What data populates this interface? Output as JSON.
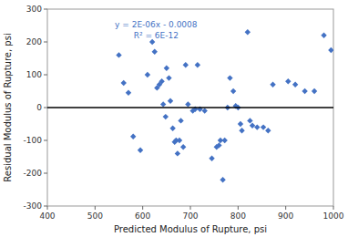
{
  "chart_data": {
    "type": "scatter",
    "xlabel": "Predicted Modulus of Rupture, psi",
    "ylabel": "Residual Modulus of Rupture, psi",
    "xlim": [
      400,
      1000
    ],
    "ylim": [
      -300,
      300
    ],
    "xticks": [
      400,
      500,
      600,
      700,
      800,
      900,
      1000
    ],
    "yticks": [
      -300,
      -200,
      -100,
      0,
      100,
      200,
      300
    ],
    "grid": false,
    "annotations": [
      "y = 2E-06x - 0.0008",
      "R² = 6E-12"
    ],
    "series": [
      {
        "type": "scatter",
        "color": "#4472C4",
        "marker": "diamond",
        "x": [
          550,
          560,
          570,
          580,
          595,
          610,
          620,
          625,
          630,
          635,
          640,
          643,
          648,
          650,
          655,
          658,
          663,
          667,
          670,
          673,
          677,
          680,
          685,
          690,
          695,
          705,
          710,
          715,
          720,
          730,
          745,
          755,
          760,
          763,
          768,
          772,
          778,
          783,
          790,
          795,
          800,
          805,
          808,
          820,
          825,
          830,
          840,
          853,
          863,
          873,
          905,
          920,
          940,
          960,
          980,
          995
        ],
        "values": [
          160,
          75,
          45,
          -88,
          -130,
          100,
          200,
          170,
          60,
          70,
          80,
          10,
          -28,
          120,
          90,
          20,
          -63,
          -105,
          -100,
          -140,
          -100,
          -40,
          -120,
          130,
          10,
          -10,
          -5,
          130,
          -5,
          -10,
          -155,
          -120,
          -115,
          -100,
          -220,
          -100,
          0,
          90,
          50,
          5,
          0,
          -50,
          -70,
          230,
          -40,
          -55,
          -60,
          -60,
          -70,
          70,
          80,
          70,
          50,
          50,
          220,
          175
        ]
      },
      {
        "type": "line",
        "color": "#000000",
        "line_style": "solid",
        "x": [
          400,
          1000
        ],
        "values": [
          0,
          0.0012
        ]
      }
    ]
  }
}
